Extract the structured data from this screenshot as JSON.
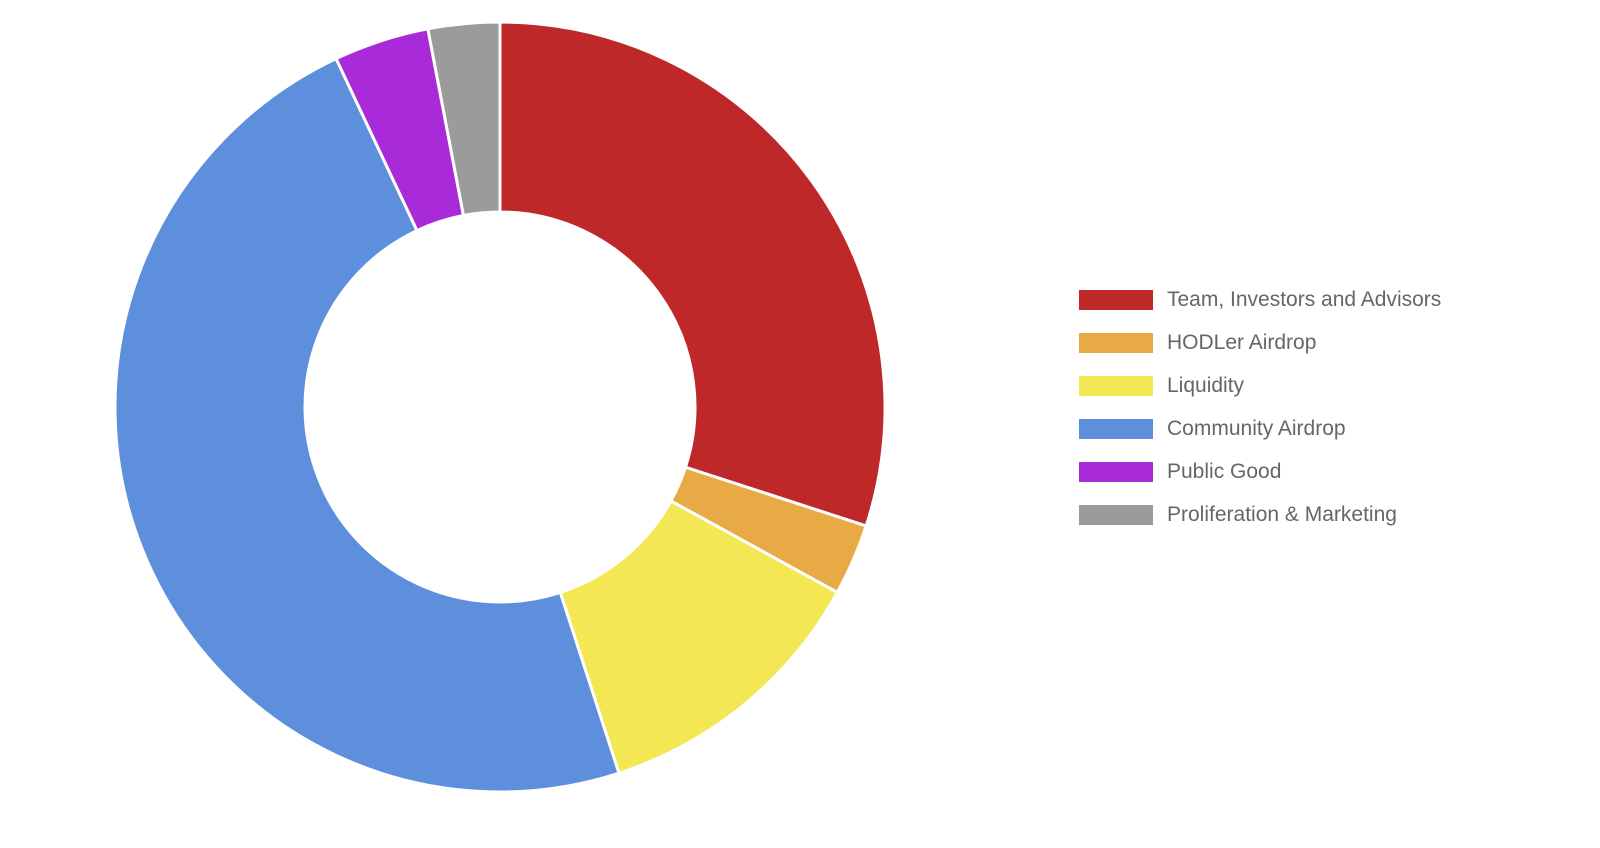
{
  "chart_data": {
    "type": "pie",
    "variant": "donut",
    "categories": [
      "Team, Investors and Advisors",
      "HODLer Airdrop",
      "Liquidity",
      "Community Airdrop",
      "Public Good",
      "Proliferation & Marketing"
    ],
    "values": [
      30,
      3,
      12,
      48,
      4,
      3
    ],
    "colors": [
      "#bf2828",
      "#e8aa45",
      "#f3e854",
      "#5d8fdc",
      "#a82ad8",
      "#9b9b9b"
    ],
    "legend_position": "right"
  }
}
